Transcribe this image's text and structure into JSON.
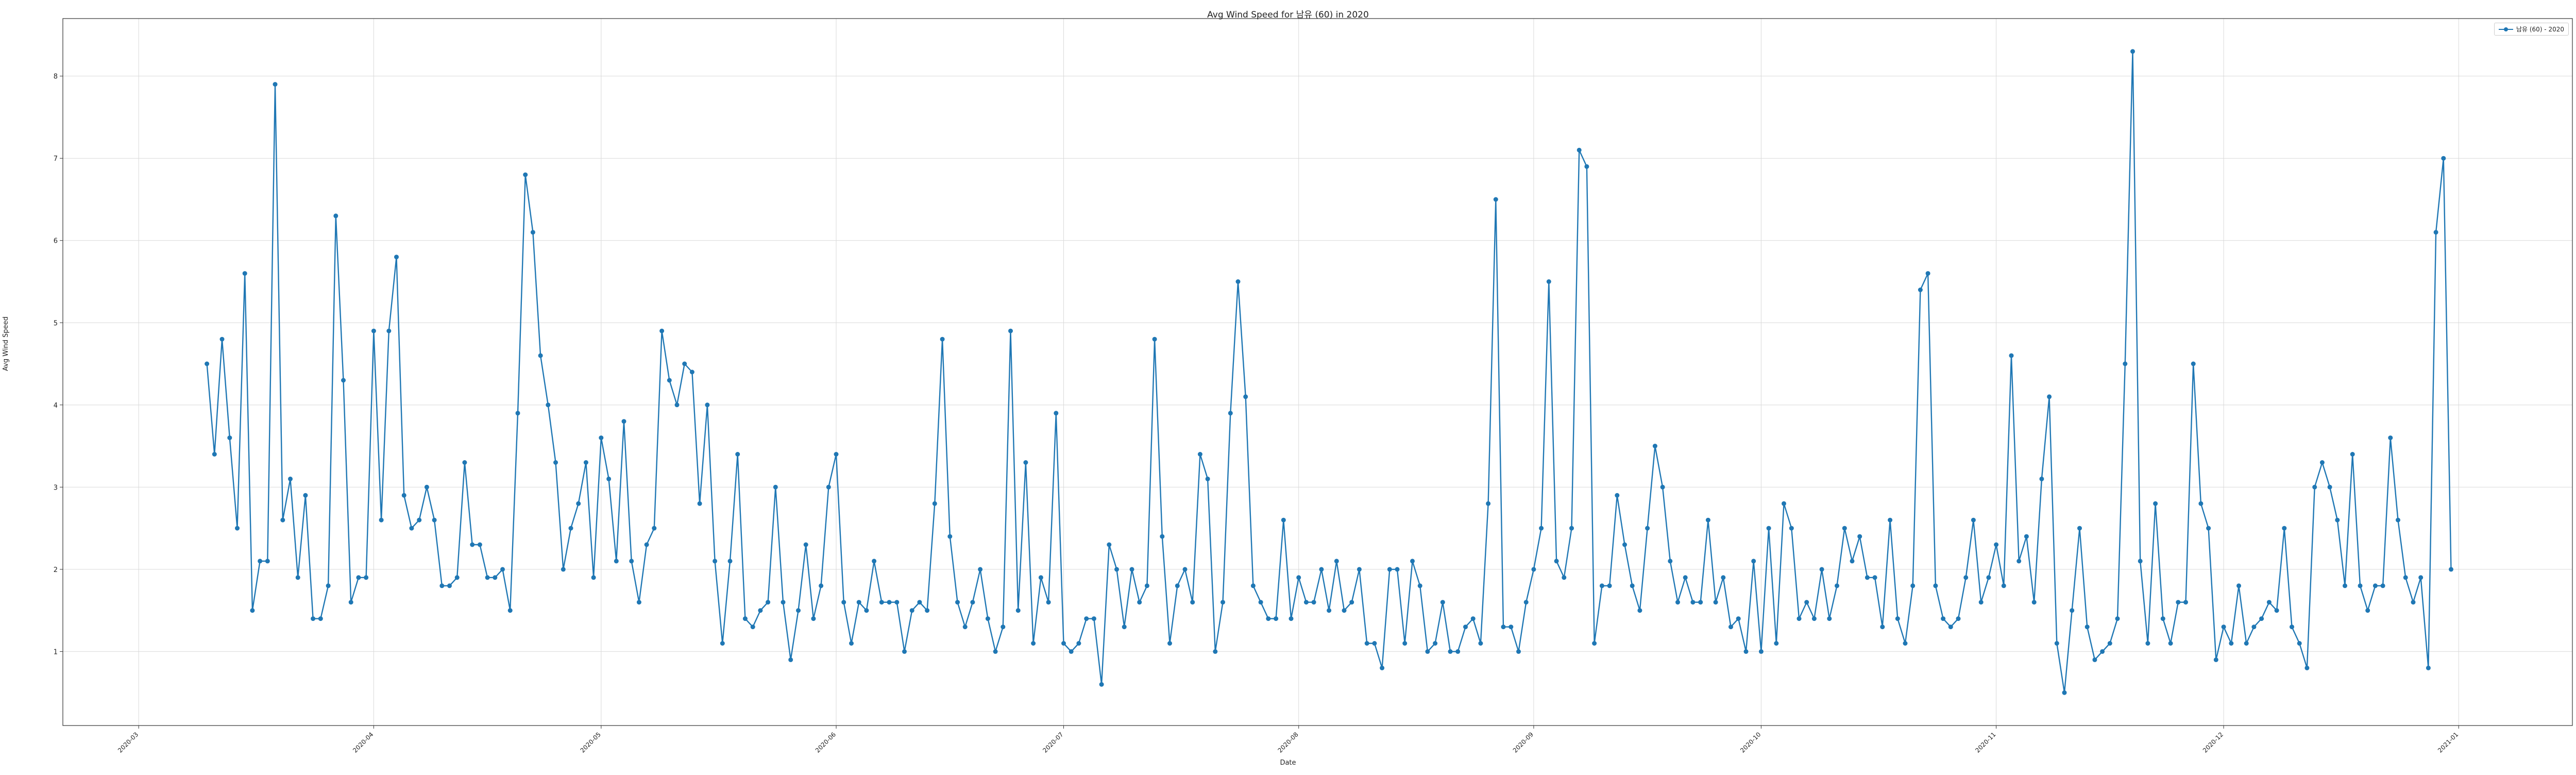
{
  "chart_data": {
    "type": "line",
    "title": "Avg Wind Speed for 남유 (60) in 2020",
    "xlabel": "Date",
    "ylabel": "Avg Wind Speed",
    "xlim": [
      "2020-02-20",
      "2021-01-16"
    ],
    "ylim": [
      0.1,
      8.7
    ],
    "grid": true,
    "legend_position": "top-right",
    "x_ticks": [
      "2020-03",
      "2020-04",
      "2020-05",
      "2020-06",
      "2020-07",
      "2020-08",
      "2020-09",
      "2020-10",
      "2020-11",
      "2020-12",
      "2021-01"
    ],
    "y_ticks": [
      1,
      2,
      3,
      4,
      5,
      6,
      7,
      8
    ],
    "series": [
      {
        "name": "남유 (60) - 2020",
        "color": "#1f77b4",
        "x_start": "2020-03-10",
        "x_step_days": 1,
        "values": [
          4.5,
          3.4,
          4.8,
          3.6,
          2.5,
          5.6,
          1.5,
          2.1,
          2.1,
          7.9,
          2.6,
          3.1,
          1.9,
          2.9,
          1.4,
          1.4,
          1.8,
          6.3,
          4.3,
          1.6,
          1.9,
          1.9,
          4.9,
          2.6,
          4.9,
          5.8,
          2.9,
          2.5,
          2.6,
          3.0,
          2.6,
          1.8,
          1.8,
          1.9,
          3.3,
          2.3,
          2.3,
          1.9,
          1.9,
          2.0,
          1.5,
          3.9,
          6.8,
          6.1,
          4.6,
          4.0,
          3.3,
          2.0,
          2.5,
          2.8,
          3.3,
          1.9,
          3.6,
          3.1,
          2.1,
          3.8,
          2.1,
          1.6,
          2.3,
          2.5,
          4.9,
          4.3,
          4.0,
          4.5,
          4.4,
          2.8,
          4.0,
          2.1,
          1.1,
          2.1,
          3.4,
          1.4,
          1.3,
          1.5,
          1.6,
          3.0,
          1.6,
          0.9,
          1.5,
          2.3,
          1.4,
          1.8,
          3.0,
          3.4,
          1.6,
          1.1,
          1.6,
          1.5,
          2.1,
          1.6,
          1.6,
          1.6,
          1.0,
          1.5,
          1.6,
          1.5,
          2.8,
          4.8,
          2.4,
          1.6,
          1.3,
          1.6,
          2.0,
          1.4,
          1.0,
          1.3,
          4.9,
          1.5,
          3.3,
          1.1,
          1.9,
          1.6,
          3.9,
          1.1,
          1.0,
          1.1,
          1.4,
          1.4,
          0.6,
          2.3,
          2.0,
          1.3,
          2.0,
          1.6,
          1.8,
          4.8,
          2.4,
          1.1,
          1.8,
          2.0,
          1.6,
          3.4,
          3.1,
          1.0,
          1.6,
          3.9,
          5.5,
          4.1,
          1.8,
          1.6,
          1.4,
          1.4,
          2.6,
          1.4,
          1.9,
          1.6,
          1.6,
          2.0,
          1.5,
          2.1,
          1.5,
          1.6,
          2.0,
          1.1,
          1.1,
          0.8,
          2.0,
          2.0,
          1.1,
          2.1,
          1.8,
          1.0,
          1.1,
          1.6,
          1.0,
          1.0,
          1.3,
          1.4,
          1.1,
          2.8,
          6.5,
          1.3,
          1.3,
          1.0,
          1.6,
          2.0,
          2.5,
          5.5,
          2.1,
          1.9,
          2.5,
          7.1,
          6.9,
          1.1,
          1.8,
          1.8,
          2.9,
          2.3,
          1.8,
          1.5,
          2.5,
          3.5,
          3.0,
          2.1,
          1.6,
          1.9,
          1.6,
          1.6,
          2.6,
          1.6,
          1.9,
          1.3,
          1.4,
          1.0,
          2.1,
          1.0,
          2.5,
          1.1,
          2.8,
          2.5,
          1.4,
          1.6,
          1.4,
          2.0,
          1.4,
          1.8,
          2.5,
          2.1,
          2.4,
          1.9,
          1.9,
          1.3,
          2.6,
          1.4,
          1.1,
          1.8,
          5.4,
          5.6,
          1.8,
          1.4,
          1.3,
          1.4,
          1.9,
          2.6,
          1.6,
          1.9,
          2.3,
          1.8,
          4.6,
          2.1,
          2.4,
          1.6,
          3.1,
          4.1,
          1.1,
          0.5,
          1.5,
          2.5,
          1.3,
          0.9,
          1.0,
          1.1,
          1.4,
          4.5,
          8.3,
          2.1,
          1.1,
          2.8,
          1.4,
          1.1,
          1.6,
          1.6,
          4.5,
          2.8,
          2.5,
          0.9,
          1.3,
          1.1,
          1.8,
          1.1,
          1.3,
          1.4,
          1.6,
          1.5,
          2.5,
          1.3,
          1.1,
          0.8,
          3.0,
          3.3,
          3.0,
          2.6,
          1.8,
          3.4,
          1.8,
          1.5,
          1.8,
          1.8,
          3.6,
          2.6,
          1.9,
          1.6,
          1.9,
          0.8,
          6.1,
          7.0,
          2.0
        ]
      }
    ]
  }
}
